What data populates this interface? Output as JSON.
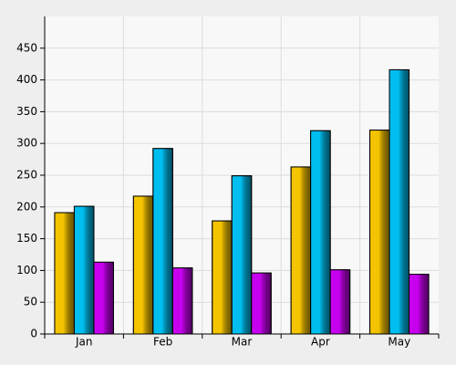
{
  "chart_data": {
    "type": "bar",
    "categories": [
      "Jan",
      "Feb",
      "Mar",
      "Apr",
      "May"
    ],
    "series": [
      {
        "color": "#f5c400",
        "values": [
          191,
          217,
          178,
          263,
          321
        ]
      },
      {
        "color": "#00bff0",
        "values": [
          201,
          292,
          249,
          320,
          416
        ]
      },
      {
        "color": "#c800f0",
        "values": [
          113,
          104,
          96,
          101,
          94
        ]
      }
    ],
    "ylim": [
      0,
      500
    ],
    "yticks": [
      0,
      50,
      100,
      150,
      200,
      250,
      300,
      350,
      400,
      450
    ],
    "grid": true
  }
}
